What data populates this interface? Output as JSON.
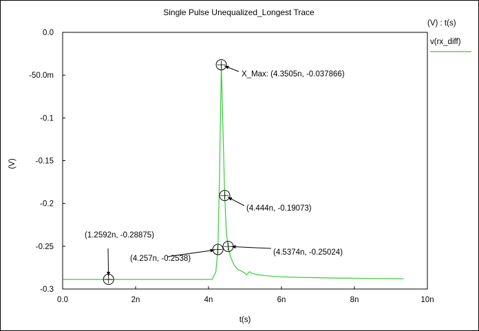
{
  "chart_data": {
    "type": "line",
    "title": "Single Pulse Unequalized_Longest Trace",
    "xlabel": "t(s)",
    "ylabel": "(V)",
    "legend_header": "(V) : t(s)",
    "legend_position": "top-right",
    "xlim": [
      0,
      10
    ],
    "ylim": [
      -0.3,
      0.0
    ],
    "grid": false,
    "x_unit": "ns",
    "x_ticks": [
      {
        "value": 0,
        "label": "0.0"
      },
      {
        "value": 2,
        "label": "2n"
      },
      {
        "value": 4,
        "label": "4n"
      },
      {
        "value": 6,
        "label": "6n"
      },
      {
        "value": 8,
        "label": "8n"
      },
      {
        "value": 10,
        "label": "10n"
      }
    ],
    "y_ticks": [
      {
        "value": 0.0,
        "label": "0.0"
      },
      {
        "value": -0.05,
        "label": "-50.0m"
      },
      {
        "value": -0.1,
        "label": "-0.1"
      },
      {
        "value": -0.15,
        "label": "-0.15"
      },
      {
        "value": -0.2,
        "label": "-0.2"
      },
      {
        "value": -0.25,
        "label": "-0.25"
      },
      {
        "value": -0.3,
        "label": "-0.3"
      }
    ],
    "series": [
      {
        "name": "v(rx_diff)",
        "color": "#33cc33",
        "x": [
          0.0,
          1.0,
          2.0,
          3.0,
          3.8,
          4.1,
          4.2,
          4.257,
          4.3,
          4.3505,
          4.4,
          4.444,
          4.49,
          4.5374,
          4.6,
          4.7,
          4.8,
          4.9,
          5.0,
          5.05,
          5.12,
          5.2,
          5.4,
          5.6,
          5.8,
          6.0,
          6.5,
          7.0,
          7.5,
          8.0,
          8.5,
          9.0,
          9.35
        ],
        "y": [
          -0.2888,
          -0.2888,
          -0.2888,
          -0.2888,
          -0.2888,
          -0.2887,
          -0.28,
          -0.2538,
          -0.17,
          -0.037866,
          -0.12,
          -0.19073,
          -0.235,
          -0.25024,
          -0.262,
          -0.272,
          -0.277,
          -0.279,
          -0.2815,
          -0.2835,
          -0.2797,
          -0.282,
          -0.2835,
          -0.2845,
          -0.2853,
          -0.2858,
          -0.2864,
          -0.2868,
          -0.2872,
          -0.2874,
          -0.2877,
          -0.2878,
          -0.288
        ]
      }
    ],
    "markers": [
      {
        "x": 1.2592,
        "y": -0.28875,
        "label": "(1.2592n, -0.28875)"
      },
      {
        "x": 4.257,
        "y": -0.2538,
        "label": "(4.257n, -0.2538)"
      },
      {
        "x": 4.3505,
        "y": -0.037866,
        "label": "X_Max: (4.3505n, -0.037866)"
      },
      {
        "x": 4.444,
        "y": -0.19073,
        "label": "(4.444n, -0.19073)"
      },
      {
        "x": 4.5374,
        "y": -0.25024,
        "label": "(4.5374n, -0.25024)"
      }
    ]
  }
}
